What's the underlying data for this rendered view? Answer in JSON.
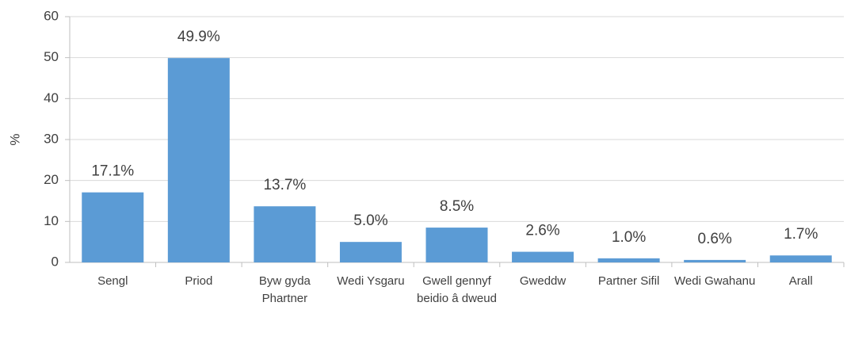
{
  "chart_data": {
    "type": "bar",
    "y_label": "%",
    "categories": [
      "Sengl",
      "Priod",
      "Byw gyda Phartner",
      "Wedi Ysgaru",
      "Gwell gennyf beidio â dweud",
      "Gweddw",
      "Partner Sifil",
      "Wedi Gwahanu",
      "Arall"
    ],
    "values": [
      17.1,
      49.9,
      13.7,
      5.0,
      8.5,
      2.6,
      1.0,
      0.6,
      1.7
    ],
    "value_labels": [
      "17.1%",
      "49.9%",
      "13.7%",
      "5.0%",
      "8.5%",
      "2.6%",
      "1.0%",
      "0.6%",
      "1.7%"
    ],
    "color": "#5b9bd5",
    "ylim": [
      0,
      60
    ],
    "yticks": [
      0,
      10,
      20,
      30,
      40,
      50,
      60
    ],
    "grid": true
  }
}
